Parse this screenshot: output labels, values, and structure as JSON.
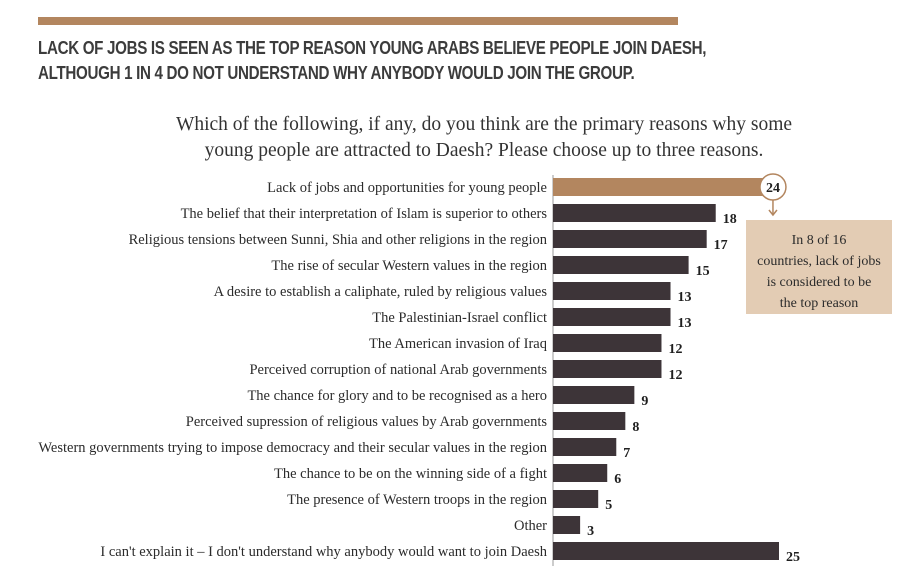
{
  "headline": {
    "line1": "LACK OF JOBS IS SEEN AS THE TOP REASON YOUNG ARABS BELIEVE PEOPLE JOIN DAESH,",
    "line2": "ALTHOUGH 1 IN 4 DO NOT UNDERSTAND WHY ANYBODY WOULD JOIN THE GROUP."
  },
  "question": {
    "line1": "Which of the following, if any, do you think are the primary reasons why some",
    "line2": "young people are attracted to Daesh? Please choose up to three reasons."
  },
  "callout": {
    "line1": "In 8 of 16",
    "line2": "countries, lack of jobs",
    "line3": "is considered to be",
    "line4": "the top reason"
  },
  "colors": {
    "highlight_bar": "#b3865f",
    "bar": "#3d3438",
    "callout_bg": "#e3ccb4",
    "rule": "#b3865f"
  },
  "chart_data": {
    "type": "bar",
    "orientation": "horizontal",
    "categories": [
      "Lack of jobs and opportunities for young people",
      "The belief that their interpretation of Islam is superior to others",
      "Religious tensions between Sunni, Shia and other religions in the region",
      "The rise of secular Western values in the region",
      "A desire to establish a caliphate, ruled by religious values",
      "The Palestinian-Israel conflict",
      "The American invasion of Iraq",
      "Perceived corruption of national Arab governments",
      "The chance for glory and to be recognised as a hero",
      "Perceived supression of religious values by Arab governments",
      "Western governments trying to impose democracy and their secular values in the region",
      "The chance to be on the winning side of a fight",
      "The presence of Western troops in the region",
      "Other",
      "I can't explain it – I don't understand why anybody would want to join Daesh"
    ],
    "values": [
      24,
      18,
      17,
      15,
      13,
      13,
      12,
      12,
      9,
      8,
      7,
      6,
      5,
      3,
      25
    ],
    "highlighted_index": 0,
    "title": "",
    "xlabel": "",
    "ylabel": "",
    "xlim": [
      0,
      25
    ],
    "grid": false,
    "legend": "none"
  }
}
